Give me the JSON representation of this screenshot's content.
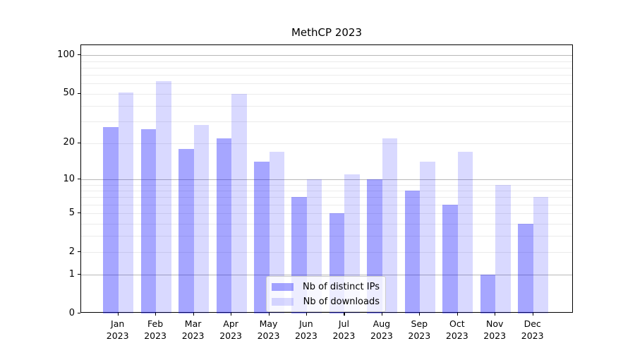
{
  "chart_data": {
    "type": "bar",
    "title": "MethCP 2023",
    "categories": [
      "Jan",
      "Feb",
      "Mar",
      "Apr",
      "May",
      "Jun",
      "Jul",
      "Aug",
      "Sep",
      "Oct",
      "Nov",
      "Dec"
    ],
    "category_year": "2023",
    "series": [
      {
        "name": "Nb of distinct IPs",
        "color": "rgba(0,0,255,0.35)",
        "values": [
          27,
          26,
          18,
          22,
          14,
          7,
          5,
          10,
          8,
          6,
          1,
          4
        ]
      },
      {
        "name": "Nb of downloads",
        "color": "rgba(0,0,255,0.15)",
        "values": [
          51,
          63,
          28,
          50,
          17,
          10,
          11,
          22,
          14,
          17,
          9,
          7
        ]
      }
    ],
    "xlabel": "",
    "ylabel": "",
    "yscale": "log1p",
    "ylim": [
      0,
      120
    ],
    "ytick_values": [
      0,
      1,
      2,
      5,
      10,
      20,
      50,
      100
    ],
    "ytick_labels": [
      "0",
      "1",
      "2",
      "5",
      "10",
      "20",
      "50",
      "100"
    ],
    "grid": "on",
    "gridlines_major": [
      1,
      10,
      100
    ],
    "gridlines_minor": [
      2,
      3,
      4,
      5,
      6,
      7,
      8,
      9,
      20,
      30,
      40,
      50,
      60,
      70,
      80,
      90
    ],
    "legend_position": "lower-center",
    "colors": {
      "bar_distinct_ips": "#a6a6f8",
      "bar_downloads": "#d9d9f8",
      "grid_major": "#b8b8b8",
      "grid_minor": "#ebebeb",
      "axis": "#000000",
      "background": "#ffffff"
    }
  }
}
